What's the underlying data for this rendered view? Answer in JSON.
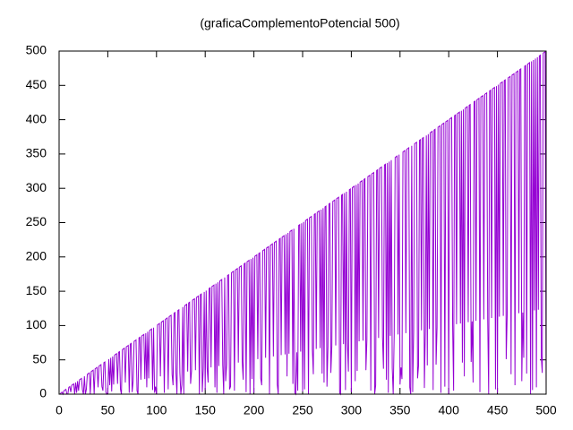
{
  "chart_data": {
    "type": "line",
    "title": "(graficaComplementoPotencial 500)",
    "xlim": [
      0,
      500
    ],
    "ylim": [
      0,
      500
    ],
    "xticks": [
      0,
      50,
      100,
      150,
      200,
      250,
      300,
      350,
      400,
      450,
      500
    ],
    "yticks": [
      0,
      50,
      100,
      150,
      200,
      250,
      300,
      350,
      400,
      450,
      500
    ],
    "grid": false,
    "x": [
      1,
      2,
      3,
      4,
      5,
      6,
      7,
      8,
      9,
      10,
      11,
      12,
      13,
      14,
      15,
      16,
      17,
      18,
      19,
      20,
      21,
      22,
      23,
      24,
      25,
      26,
      27,
      28,
      29,
      30,
      31,
      32,
      33,
      34,
      35,
      36,
      37,
      38,
      39,
      40,
      41,
      42,
      43,
      44,
      45,
      46,
      47,
      48,
      49,
      50,
      51,
      52,
      53,
      54,
      55,
      56,
      57,
      58,
      59,
      60,
      61,
      62,
      63,
      64,
      65,
      66,
      67,
      68,
      69,
      70,
      71,
      72,
      73,
      74,
      75,
      76,
      77,
      78,
      79,
      80,
      81,
      82,
      83,
      84,
      85,
      86,
      87,
      88,
      89,
      90,
      91,
      92,
      93,
      94,
      95,
      96,
      97,
      98,
      99,
      100,
      101,
      102,
      103,
      104,
      105,
      106,
      107,
      108,
      109,
      110,
      111,
      112,
      113,
      114,
      115,
      116,
      117,
      118,
      119,
      120,
      121,
      122,
      123,
      124,
      125,
      126,
      127,
      128,
      129,
      130,
      131,
      132,
      133,
      134,
      135,
      136,
      137,
      138,
      139,
      140,
      141,
      142,
      143,
      144,
      145,
      146,
      147,
      148,
      149,
      150,
      151,
      152,
      153,
      154,
      155,
      156,
      157,
      158,
      159,
      160,
      161,
      162,
      163,
      164,
      165,
      166,
      167,
      168,
      169,
      170,
      171,
      172,
      173,
      174,
      175,
      176,
      177,
      178,
      179,
      180,
      181,
      182,
      183,
      184,
      185,
      186,
      187,
      188,
      189,
      190,
      191,
      192,
      193,
      194,
      195,
      196,
      197,
      198,
      199,
      200,
      201,
      202,
      203,
      204,
      205,
      206,
      207,
      208,
      209,
      210,
      211,
      212,
      213,
      214,
      215,
      216,
      217,
      218,
      219,
      220,
      221,
      222,
      223,
      224,
      225,
      226,
      227,
      228,
      229,
      230,
      231,
      232,
      233,
      234,
      235,
      236,
      237,
      238,
      239,
      240,
      241,
      242,
      243,
      244,
      245,
      246,
      247,
      248,
      249,
      250,
      251,
      252,
      253,
      254,
      255,
      256,
      257,
      258,
      259,
      260,
      261,
      262,
      263,
      264,
      265,
      266,
      267,
      268,
      269,
      270,
      271,
      272,
      273,
      274,
      275,
      276,
      277,
      278,
      279,
      280,
      281,
      282,
      283,
      284,
      285,
      286,
      287,
      288,
      289,
      290,
      291,
      292,
      293,
      294,
      295,
      296,
      297,
      298,
      299,
      300,
      301,
      302,
      303,
      304,
      305,
      306,
      307,
      308,
      309,
      310,
      311,
      312,
      313,
      314,
      315,
      316,
      317,
      318,
      319,
      320,
      321,
      322,
      323,
      324,
      325,
      326,
      327,
      328,
      329,
      330,
      331,
      332,
      333,
      334,
      335,
      336,
      337,
      338,
      339,
      340,
      341,
      342,
      343,
      344,
      345,
      346,
      347,
      348,
      349,
      350,
      351,
      352,
      353,
      354,
      355,
      356,
      357,
      358,
      359,
      360,
      361,
      362,
      363,
      364,
      365,
      366,
      367,
      368,
      369,
      370,
      371,
      372,
      373,
      374,
      375,
      376,
      377,
      378,
      379,
      380,
      381,
      382,
      383,
      384,
      385,
      386,
      387,
      388,
      389,
      390,
      391,
      392,
      393,
      394,
      395,
      396,
      397,
      398,
      399,
      400,
      401,
      402,
      403,
      404,
      405,
      406,
      407,
      408,
      409,
      410,
      411,
      412,
      413,
      414,
      415,
      416,
      417,
      418,
      419,
      420,
      421,
      422,
      423,
      424,
      425,
      426,
      427,
      428,
      429,
      430,
      431,
      432,
      433,
      434,
      435,
      436,
      437,
      438,
      439,
      440,
      441,
      442,
      443,
      444,
      445,
      446,
      447,
      448,
      449,
      450,
      451,
      452,
      453,
      454,
      455,
      456,
      457,
      458,
      459,
      460,
      461,
      462,
      463,
      464,
      465,
      466,
      467,
      468,
      469,
      470,
      471,
      472,
      473,
      474,
      475,
      476,
      477,
      478,
      479,
      480,
      481,
      482,
      483,
      484,
      485,
      486,
      487,
      488,
      489,
      490,
      491,
      492,
      493,
      494,
      495,
      496,
      497,
      498,
      499,
      500
    ],
    "series": [
      {
        "color": "#9400d3",
        "values": [
          0,
          2,
          3,
          0,
          5,
          6,
          7,
          0,
          0,
          10,
          11,
          3,
          13,
          14,
          15,
          0,
          17,
          2,
          19,
          5,
          21,
          22,
          23,
          6,
          0,
          26,
          0,
          7,
          29,
          30,
          31,
          0,
          33,
          34,
          35,
          0,
          37,
          38,
          39,
          10,
          41,
          42,
          43,
          11,
          5,
          46,
          47,
          3,
          0,
          2,
          51,
          13,
          53,
          4,
          55,
          14,
          57,
          58,
          59,
          15,
          61,
          62,
          7,
          0,
          65,
          66,
          67,
          17,
          69,
          70,
          71,
          2,
          73,
          74,
          3,
          19,
          77,
          78,
          79,
          5,
          0,
          82,
          83,
          21,
          85,
          86,
          87,
          22,
          89,
          10,
          91,
          23,
          93,
          94,
          95,
          6,
          97,
          2,
          11,
          0,
          101,
          102,
          103,
          26,
          105,
          106,
          107,
          2,
          109,
          110,
          111,
          7,
          113,
          114,
          115,
          29,
          13,
          118,
          119,
          30,
          0,
          122,
          123,
          31,
          0,
          14,
          127,
          0,
          129,
          130,
          131,
          33,
          133,
          134,
          15,
          34,
          137,
          138,
          139,
          35,
          141,
          142,
          143,
          0,
          145,
          146,
          3,
          37,
          149,
          6,
          151,
          38,
          17,
          154,
          155,
          39,
          157,
          158,
          159,
          10,
          161,
          2,
          163,
          41,
          165,
          166,
          167,
          42,
          0,
          170,
          19,
          43,
          173,
          174,
          7,
          11,
          177,
          178,
          179,
          5,
          181,
          182,
          183,
          46,
          185,
          186,
          187,
          47,
          21,
          190,
          191,
          3,
          193,
          194,
          195,
          0,
          197,
          22,
          199,
          2,
          201,
          202,
          203,
          51,
          205,
          206,
          23,
          13,
          209,
          210,
          211,
          53,
          213,
          214,
          215,
          0,
          217,
          218,
          219,
          55,
          221,
          222,
          223,
          14,
          0,
          226,
          227,
          57,
          229,
          230,
          231,
          58,
          233,
          26,
          235,
          59,
          237,
          238,
          239,
          15,
          241,
          2,
          0,
          61,
          5,
          246,
          247,
          62,
          249,
          4,
          251,
          7,
          253,
          254,
          255,
          0,
          257,
          258,
          259,
          65,
          29,
          262,
          263,
          66,
          265,
          266,
          267,
          67,
          269,
          30,
          271,
          17,
          273,
          274,
          11,
          69,
          277,
          278,
          31,
          70,
          281,
          282,
          283,
          71,
          285,
          286,
          287,
          2,
          0,
          290,
          291,
          73,
          293,
          6,
          295,
          74,
          33,
          298,
          299,
          3,
          301,
          302,
          303,
          19,
          305,
          34,
          307,
          77,
          309,
          310,
          311,
          78,
          313,
          314,
          35,
          79,
          317,
          318,
          319,
          5,
          321,
          322,
          323,
          0,
          13,
          326,
          327,
          82,
          329,
          330,
          331,
          83,
          37,
          334,
          335,
          21,
          337,
          2,
          339,
          85,
          341,
          38,
          0,
          86,
          345,
          346,
          347,
          87,
          349,
          14,
          39,
          22,
          353,
          354,
          355,
          89,
          357,
          358,
          359,
          10,
          0,
          362,
          3,
          91,
          365,
          366,
          367,
          23,
          41,
          370,
          371,
          93,
          373,
          374,
          9,
          94,
          377,
          42,
          379,
          95,
          381,
          382,
          383,
          6,
          385,
          386,
          43,
          97,
          389,
          390,
          391,
          2,
          393,
          394,
          395,
          11,
          397,
          398,
          399,
          0,
          401,
          402,
          403,
          101,
          5,
          406,
          407,
          102,
          409,
          410,
          411,
          103,
          413,
          46,
          415,
          26,
          417,
          418,
          419,
          105,
          421,
          422,
          47,
          106,
          17,
          426,
          427,
          107,
          429,
          430,
          431,
          3,
          433,
          434,
          435,
          109,
          437,
          438,
          439,
          110,
          0,
          442,
          443,
          111,
          445,
          446,
          447,
          7,
          449,
          2,
          451,
          113,
          453,
          454,
          455,
          114,
          457,
          458,
          51,
          115,
          461,
          462,
          463,
          29,
          465,
          466,
          467,
          13,
          469,
          470,
          471,
          118,
          473,
          474,
          19,
          119,
          53,
          478,
          479,
          30,
          481,
          482,
          483,
          0,
          485,
          6,
          487,
          122,
          489,
          10,
          491,
          123,
          493,
          494,
          55,
          31,
          497,
          498,
          499,
          2
        ]
      }
    ]
  }
}
